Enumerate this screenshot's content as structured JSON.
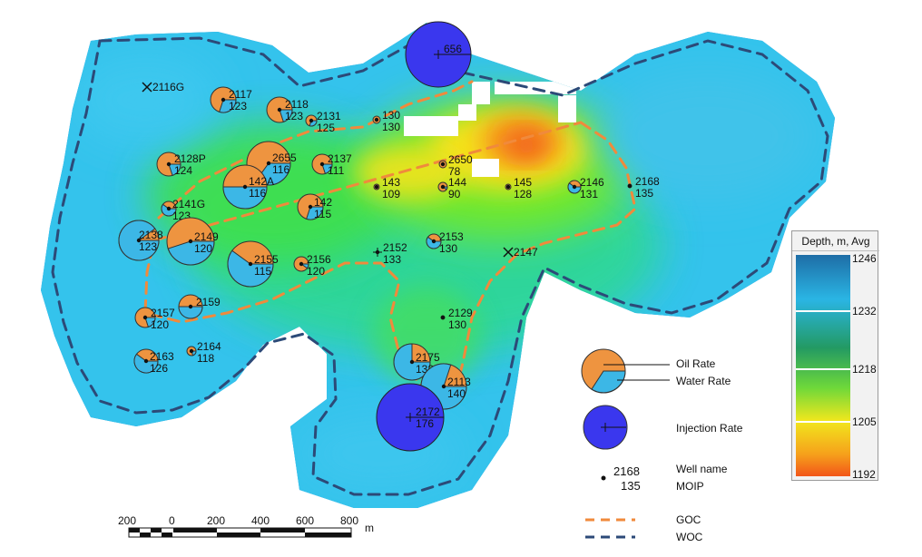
{
  "colorbar": {
    "title": "Depth, m, Avg",
    "ticks": [
      "1246",
      "1232",
      "1218",
      "1205",
      "1192"
    ],
    "colors": [
      "#1f6fbf",
      "#29b6e8",
      "#2fd96a",
      "#7be32b",
      "#f4ea1b",
      "#f7a21c",
      "#f2561a"
    ]
  },
  "wells": [
    {
      "name": "2117",
      "moip": "123",
      "type": "prod"
    },
    {
      "name": "2116G",
      "moip": "",
      "type": "abandoned"
    },
    {
      "name": "2118",
      "moip": "123",
      "type": "prod"
    },
    {
      "name": "2131",
      "moip": "125",
      "type": "prod"
    },
    {
      "name": "130",
      "moip": "130",
      "type": "prod"
    },
    {
      "name": "656",
      "moip": "",
      "type": "injector"
    },
    {
      "name": "2128P",
      "moip": "124",
      "type": "prod"
    },
    {
      "name": "2655",
      "moip": "116",
      "type": "prod"
    },
    {
      "name": "142A",
      "moip": "116",
      "type": "prod"
    },
    {
      "name": "2137",
      "moip": "111",
      "type": "prod"
    },
    {
      "name": "2650",
      "moip": "78",
      "type": "prod"
    },
    {
      "name": "143",
      "moip": "109",
      "type": "prod"
    },
    {
      "name": "144",
      "moip": "90",
      "type": "prod"
    },
    {
      "name": "145",
      "moip": "128",
      "type": "prod"
    },
    {
      "name": "2146",
      "moip": "131",
      "type": "prod"
    },
    {
      "name": "2168",
      "moip": "135",
      "type": "prod"
    },
    {
      "name": "2141G",
      "moip": "123",
      "type": "prod"
    },
    {
      "name": "142",
      "moip": "115",
      "type": "prod"
    },
    {
      "name": "2138",
      "moip": "123",
      "type": "prod"
    },
    {
      "name": "2149",
      "moip": "120",
      "type": "prod"
    },
    {
      "name": "2155",
      "moip": "115",
      "type": "prod"
    },
    {
      "name": "2156",
      "moip": "120",
      "type": "prod"
    },
    {
      "name": "2152",
      "moip": "133",
      "type": "prod"
    },
    {
      "name": "2153",
      "moip": "130",
      "type": "prod"
    },
    {
      "name": "2147",
      "moip": "",
      "type": "abandoned"
    },
    {
      "name": "2157",
      "moip": "120",
      "type": "prod"
    },
    {
      "name": "2159",
      "moip": "",
      "type": "prod"
    },
    {
      "name": "2129",
      "moip": "130",
      "type": "prod"
    },
    {
      "name": "2164",
      "moip": "118",
      "type": "prod"
    },
    {
      "name": "2163",
      "moip": "126",
      "type": "prod"
    },
    {
      "name": "2175",
      "moip": "132",
      "type": "prod"
    },
    {
      "name": "2113",
      "moip": "140",
      "type": "prod"
    },
    {
      "name": "2172",
      "moip": "176",
      "type": "injector"
    }
  ],
  "legend": {
    "oil_rate": "Oil Rate",
    "water_rate": "Water Rate",
    "injection_rate": "Injection Rate",
    "well_name": "Well name",
    "moip": "MOIP",
    "sample_name": "2168",
    "sample_moip": "135",
    "goc": "GOC",
    "woc": "WOC"
  },
  "scale": {
    "labels": [
      "200",
      "0",
      "200",
      "400",
      "600",
      "800"
    ],
    "unit": "m"
  },
  "styles": {
    "oil": "#ee9440",
    "water": "#3cb7e6",
    "injection": "#3a37ee",
    "goc": "#f08a3c",
    "woc": "#2c4a78"
  }
}
